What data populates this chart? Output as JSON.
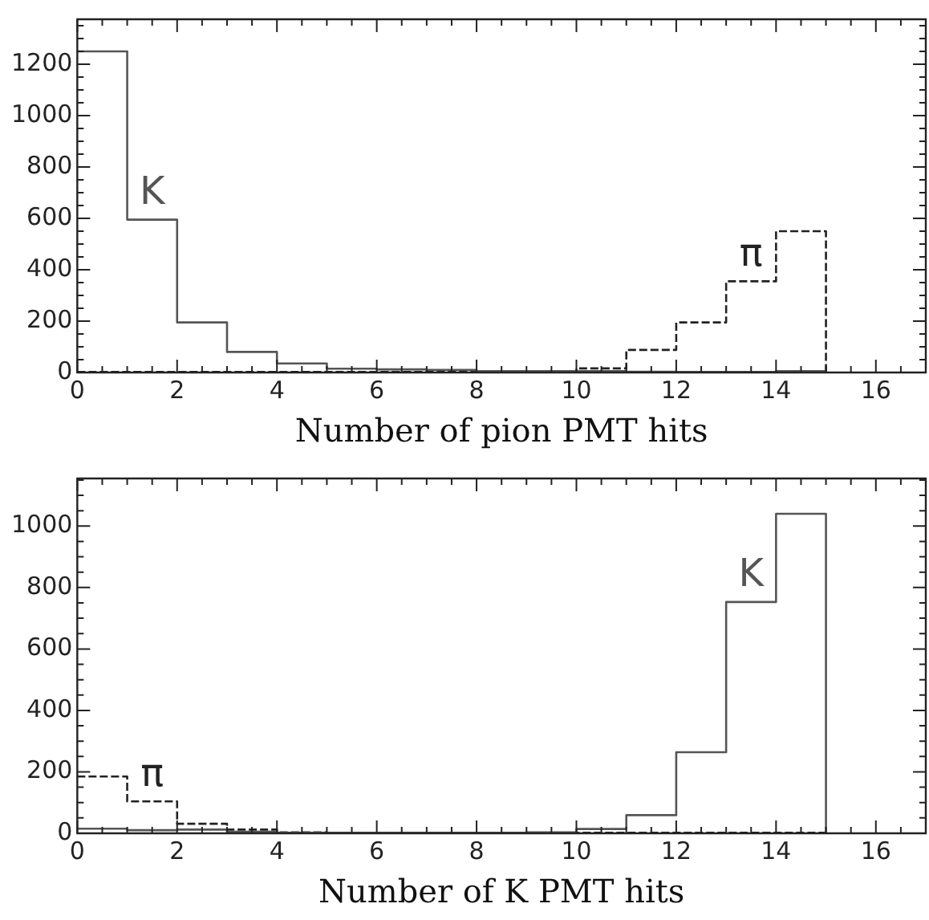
{
  "chart_data": [
    {
      "type": "histogram",
      "xlabel": "Number of pion PMT hits",
      "bins": [
        0,
        1,
        2,
        3,
        4,
        5,
        6,
        7,
        8,
        9,
        10,
        11,
        12,
        13,
        14,
        15
      ],
      "xlim": [
        0,
        17
      ],
      "xticks": [
        0,
        2,
        4,
        6,
        8,
        10,
        12,
        14,
        16
      ],
      "ylim": [
        0,
        1375
      ],
      "yticks": [
        0,
        200,
        400,
        600,
        800,
        1000,
        1200
      ],
      "grid": false,
      "legend": false,
      "series": [
        {
          "name": "K",
          "color": "#555555",
          "line_style": "solid",
          "values": [
            1250,
            595,
            195,
            80,
            35,
            15,
            12,
            10,
            5,
            5,
            5,
            3,
            2,
            2,
            5
          ]
        },
        {
          "name": "π",
          "color": "#222222",
          "line_style": "dashed",
          "values": [
            2,
            2,
            2,
            2,
            2,
            2,
            2,
            2,
            2,
            2,
            16,
            88,
            195,
            355,
            550
          ]
        }
      ]
    },
    {
      "type": "histogram",
      "xlabel": "Number of K PMT hits",
      "bins": [
        0,
        1,
        2,
        3,
        4,
        5,
        6,
        7,
        8,
        9,
        10,
        11,
        12,
        13,
        14,
        15
      ],
      "xlim": [
        0,
        17
      ],
      "xticks": [
        0,
        2,
        4,
        6,
        8,
        10,
        12,
        14,
        16
      ],
      "ylim": [
        0,
        1155
      ],
      "yticks": [
        0,
        200,
        400,
        600,
        800,
        1000
      ],
      "grid": false,
      "legend": false,
      "series": [
        {
          "name": "K",
          "color": "#555555",
          "line_style": "solid",
          "values": [
            15,
            10,
            12,
            5,
            2,
            2,
            2,
            2,
            2,
            3,
            14,
            59,
            264,
            753,
            1040
          ]
        },
        {
          "name": "π",
          "color": "#222222",
          "line_style": "dashed",
          "values": [
            185,
            104,
            31,
            12,
            3,
            2,
            2,
            2,
            2,
            2,
            2,
            2,
            2,
            2,
            2
          ]
        }
      ]
    }
  ]
}
